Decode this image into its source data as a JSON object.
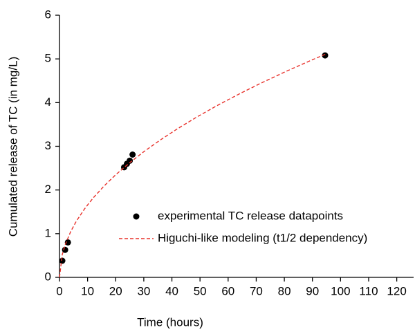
{
  "chart_data": {
    "type": "scatter",
    "x_label": "Time (hours)",
    "y_label": "Cumulated release of TC (in mg/L)",
    "xlim": [
      0,
      126
    ],
    "ylim": [
      0,
      6
    ],
    "xticks": [
      0,
      10,
      20,
      30,
      40,
      50,
      60,
      70,
      80,
      90,
      100,
      110,
      120
    ],
    "yticks": [
      0,
      1,
      2,
      3,
      4,
      5,
      6
    ],
    "grid": false,
    "legend": "lower right",
    "series": [
      {
        "name": "experimental TC release datapoints",
        "kind": "scatter",
        "color": "#000000",
        "x": [
          1,
          2,
          3,
          23,
          24,
          25,
          26,
          94.5
        ],
        "values": [
          0.38,
          0.63,
          0.8,
          2.52,
          2.6,
          2.67,
          2.81,
          5.08
        ]
      },
      {
        "name": "Higuchi-like modeling (t1/2 dependency)",
        "kind": "line",
        "color": "#e8302a",
        "x": [
          0,
          1,
          2,
          4,
          6,
          9,
          12,
          16,
          20,
          25,
          30,
          36,
          42,
          49,
          56,
          64,
          72,
          81,
          90,
          95
        ],
        "values": [
          0,
          0.525,
          0.742,
          1.05,
          1.286,
          1.575,
          1.819,
          2.1,
          2.348,
          2.625,
          2.876,
          3.15,
          3.402,
          3.675,
          3.929,
          4.2,
          4.455,
          4.725,
          4.981,
          5.117
        ]
      }
    ]
  }
}
